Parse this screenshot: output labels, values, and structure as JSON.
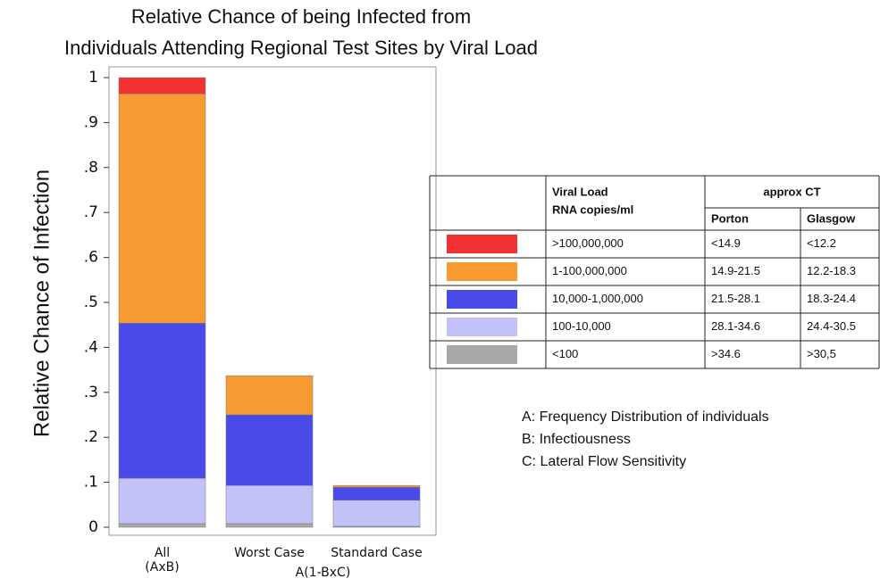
{
  "chart_data": {
    "type": "stacked_bar",
    "title": [
      "Relative Chance of being Infected from",
      "Individuals Attending Regional Test Sites by Viral Load"
    ],
    "ylabel": "Relative Chance of Infection",
    "categories": [
      "All",
      "Worst Case",
      "Standard Case"
    ],
    "x_sublabels": [
      "(AxB)",
      "A(1-BxC)"
    ],
    "ylim": [
      0,
      1
    ],
    "yticks": [
      0,
      {
        "value": 0.1,
        "label": ".1"
      },
      {
        "value": 0.2,
        "label": ".2"
      },
      {
        "value": 0.3,
        "label": ".3"
      },
      {
        "value": 0.4,
        "label": ".4"
      },
      {
        "value": 0.5,
        "label": ".5"
      },
      {
        "value": 0.6,
        "label": ".6"
      },
      {
        "value": 0.7,
        "label": ".7"
      },
      {
        "value": 0.8,
        "label": ".8"
      },
      {
        "value": 0.9,
        "label": ".9"
      },
      1
    ],
    "legend_headers": {
      "viral_load": "Viral Load",
      "units": "RNA copies/ml",
      "ct": "approx CT",
      "porton": "Porton",
      "glasgow": "Glasgow"
    },
    "series": [
      {
        "name": ">100,000,000",
        "color": "#f03232",
        "porton": "<14.9",
        "glasgow": "<12.2",
        "values": [
          0.036,
          0,
          0
        ]
      },
      {
        "name": "1-100,000,000",
        "color": "#f89a32",
        "porton": "14.9-21.5",
        "glasgow": "12.2-18.3",
        "values": [
          0.51,
          0.087,
          0.004
        ]
      },
      {
        "name": "10,000-1,000,000",
        "color": "#4a4ae8",
        "porton": "21.5-28.1",
        "glasgow": "18.3-24.4",
        "values": [
          0.345,
          0.157,
          0.029
        ]
      },
      {
        "name": "100-10,000",
        "color": "#c2c2f8",
        "porton": "28.1-34.6",
        "glasgow": "24.4-30.5",
        "values": [
          0.101,
          0.085,
          0.058
        ]
      },
      {
        "name": "<100",
        "color": "#a8a8a8",
        "porton": ">34.6",
        "glasgow": ">30,5",
        "values": [
          0.008,
          0.008,
          0.002
        ]
      }
    ],
    "notes": [
      "A: Frequency Distribution of individuals",
      "B: Infectiousness",
      "C: Lateral Flow Sensitivity"
    ]
  }
}
